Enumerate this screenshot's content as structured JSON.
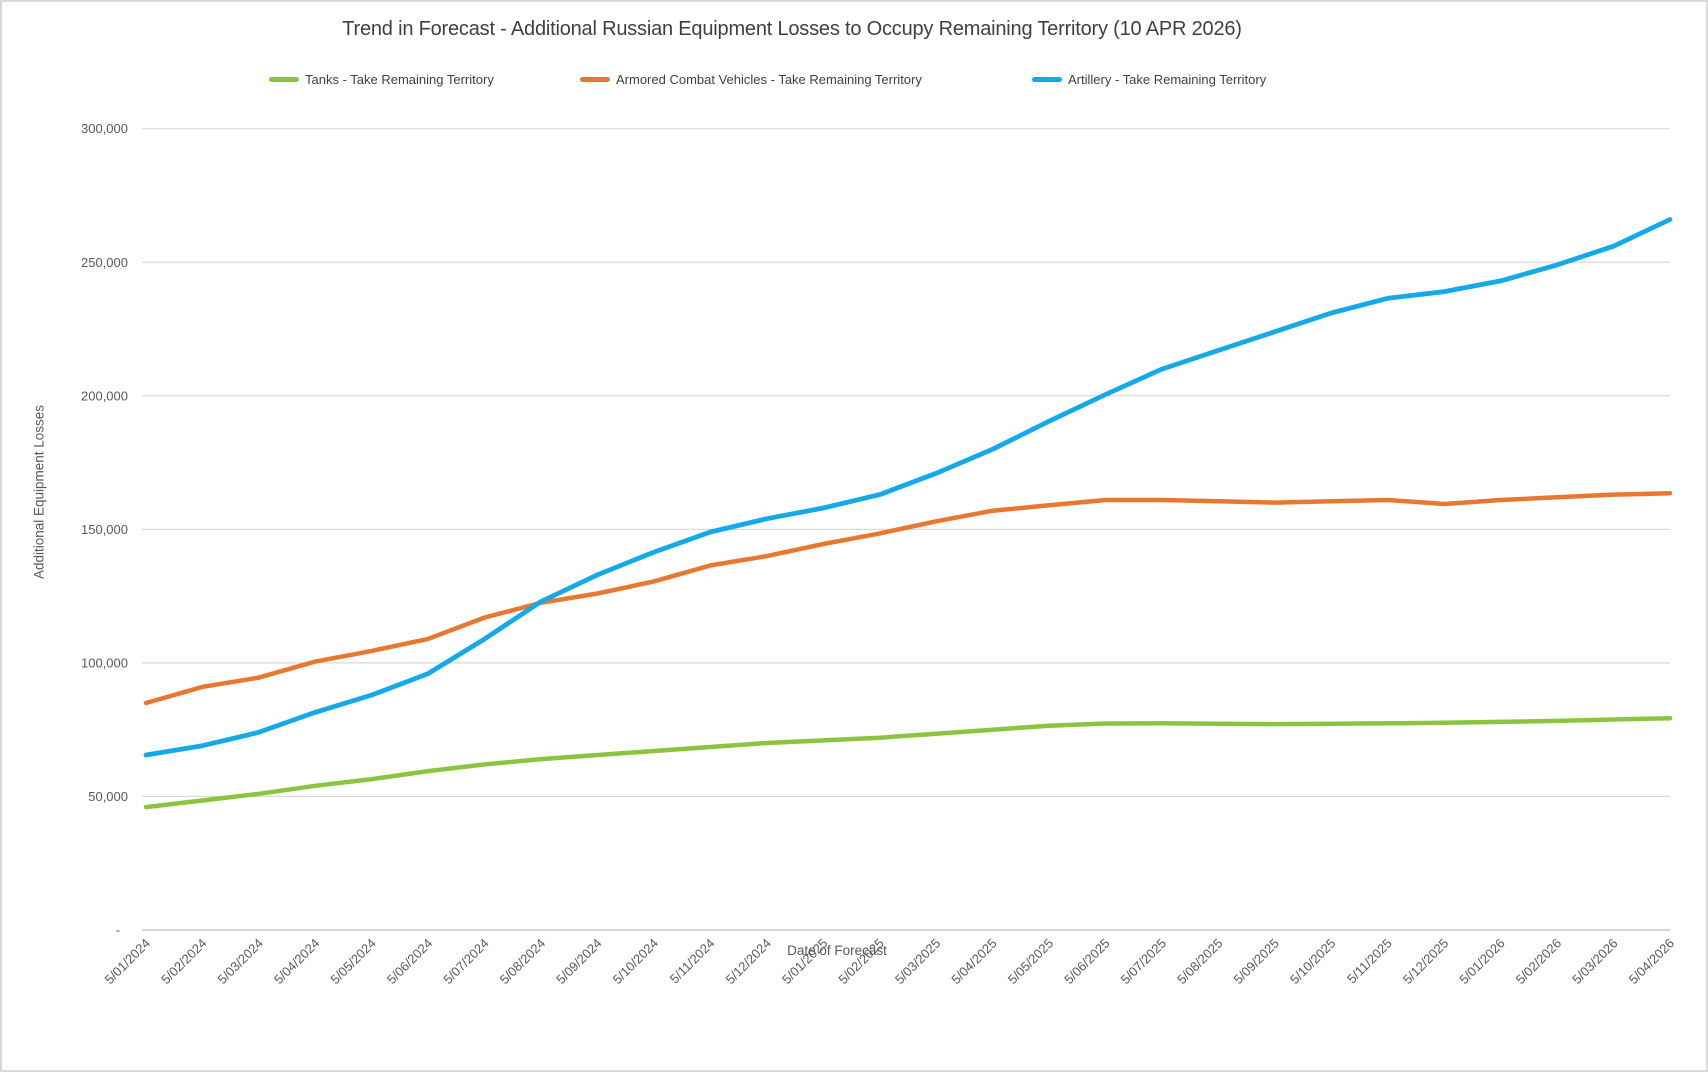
{
  "chart": {
    "title": "Trend in Forecast - Additional Russian Equipment Losses to Occupy Remaining Territory (10 APR 2026)",
    "x_axis_title": "Date of Forecast",
    "y_axis_title": "Additional Equipment Losses"
  },
  "chart_data": {
    "type": "line",
    "title": "Trend in Forecast - Additional Russian Equipment Losses to Occupy Remaining Territory (10 APR 2026)",
    "xlabel": "Date of Forecast",
    "ylabel": "Additional Equipment Losses",
    "ylim": [
      0,
      300000
    ],
    "ytick_step": 50000,
    "y_tick_labels": [
      "-",
      "50,000",
      "100,000",
      "150,000",
      "200,000",
      "250,000",
      "300,000"
    ],
    "grid": true,
    "legend_position": "top",
    "categories": [
      "5/01/2024",
      "5/02/2024",
      "5/03/2024",
      "5/04/2024",
      "5/05/2024",
      "5/06/2024",
      "5/07/2024",
      "5/08/2024",
      "5/09/2024",
      "5/10/2024",
      "5/11/2024",
      "5/12/2024",
      "5/01/2025",
      "5/02/2025",
      "5/03/2025",
      "5/04/2025",
      "5/05/2025",
      "5/06/2025",
      "5/07/2025",
      "5/08/2025",
      "5/09/2025",
      "5/10/2025",
      "5/11/2025",
      "5/12/2025",
      "5/01/2026",
      "5/02/2026",
      "5/03/2026",
      "5/04/2026"
    ],
    "series": [
      {
        "name": "Tanks - Take Remaining Territory",
        "color": "#8BC540",
        "values": [
          46000,
          48500,
          51000,
          54000,
          56500,
          59500,
          62000,
          64000,
          65500,
          67000,
          68500,
          70000,
          71000,
          72000,
          73500,
          75000,
          76500,
          77300,
          77400,
          77200,
          77100,
          77200,
          77400,
          77600,
          77900,
          78300,
          78800,
          79300
        ]
      },
      {
        "name": "Armored Combat Vehicles - Take Remaining Territory",
        "color": "#E87830",
        "values": [
          85000,
          91000,
          94500,
          100500,
          104500,
          109000,
          117000,
          122500,
          126000,
          130500,
          136500,
          140000,
          144500,
          148500,
          153000,
          157000,
          159000,
          161000,
          161000,
          160500,
          160000,
          160500,
          161000,
          159500,
          161000,
          162000,
          163000,
          163500
        ]
      },
      {
        "name": "Artillery - Take Remaining Territory",
        "color": "#14A9E8",
        "values": [
          65500,
          69000,
          74000,
          81500,
          88000,
          96000,
          109000,
          123000,
          133000,
          141500,
          149000,
          154000,
          158000,
          163000,
          171000,
          180000,
          190500,
          200500,
          210000,
          217000,
          224000,
          231000,
          236500,
          239000,
          243000,
          249000,
          256000,
          266000
        ]
      }
    ],
    "colors": {
      "gridline": "#D9D9D9",
      "axis_line": "#BFBFBF",
      "tick_text": "#595959",
      "title_text": "#404040"
    }
  }
}
